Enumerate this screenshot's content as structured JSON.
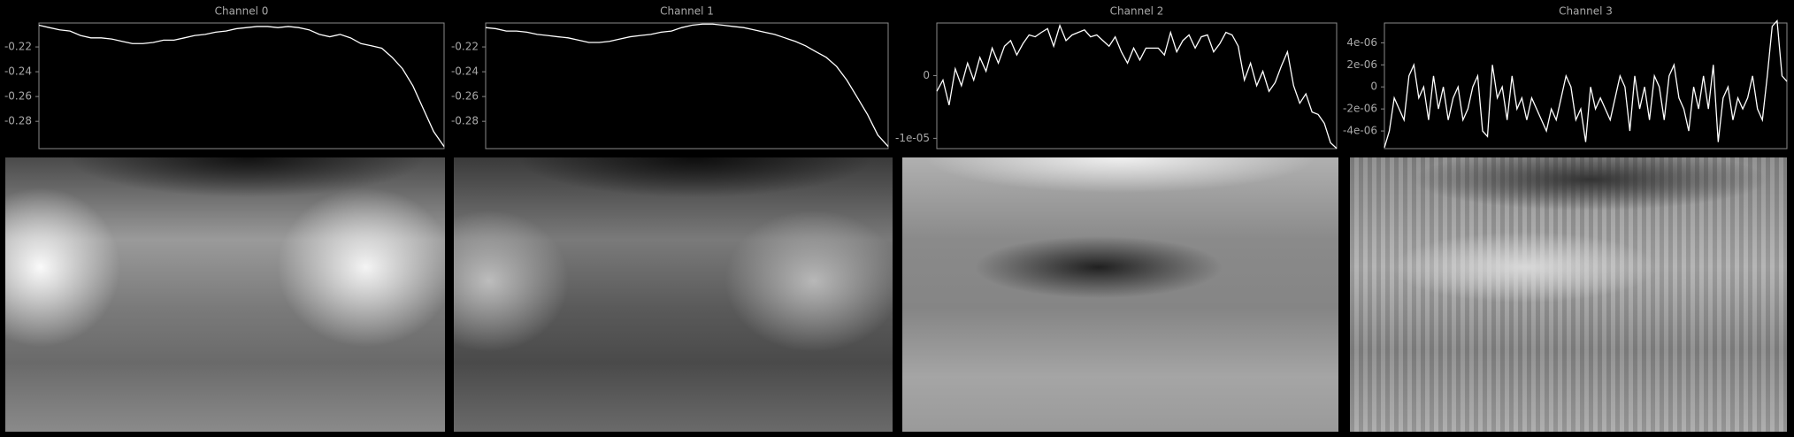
{
  "chart_data": [
    {
      "type": "line",
      "title": "Channel 0",
      "color": "#ffffff",
      "values": [
        -0.2025,
        -0.2044,
        -0.2062,
        -0.2072,
        -0.2108,
        -0.2127,
        -0.2127,
        -0.2136,
        -0.2155,
        -0.2173,
        -0.2173,
        -0.2164,
        -0.2145,
        -0.2145,
        -0.2127,
        -0.2108,
        -0.2099,
        -0.2081,
        -0.2072,
        -0.2053,
        -0.2044,
        -0.2035,
        -0.2035,
        -0.2044,
        -0.2035,
        -0.2044,
        -0.2062,
        -0.2099,
        -0.2118,
        -0.2099,
        -0.2127,
        -0.2173,
        -0.2191,
        -0.221,
        -0.2284,
        -0.2376,
        -0.2514,
        -0.2699,
        -0.2883,
        -0.3003
      ],
      "ylim": [
        -0.302,
        -0.2007
      ],
      "yticks": [
        -0.22,
        -0.24,
        -0.26,
        -0.28
      ]
    },
    {
      "type": "line",
      "title": "Channel 1",
      "color": "#ffffff",
      "values": [
        -0.2044,
        -0.2053,
        -0.2072,
        -0.2072,
        -0.2081,
        -0.2099,
        -0.2108,
        -0.2118,
        -0.2127,
        -0.2145,
        -0.2164,
        -0.2164,
        -0.2155,
        -0.2136,
        -0.2118,
        -0.2108,
        -0.2099,
        -0.2081,
        -0.2072,
        -0.2044,
        -0.2025,
        -0.2016,
        -0.2016,
        -0.2025,
        -0.2035,
        -0.2044,
        -0.2062,
        -0.2081,
        -0.2099,
        -0.2127,
        -0.2155,
        -0.2191,
        -0.2238,
        -0.2284,
        -0.2357,
        -0.2468,
        -0.2606,
        -0.2745,
        -0.2911,
        -0.3003
      ],
      "ylim": [
        -0.302,
        -0.2007
      ],
      "yticks": [
        -0.22,
        -0.24,
        -0.26,
        -0.28
      ]
    },
    {
      "type": "line",
      "title": "Channel 2",
      "color": "#ffffff",
      "values": [
        -2.5e-06,
        -7e-07,
        -4.7e-06,
        1.1e-06,
        -1.6e-06,
        2e-06,
        -7e-07,
        2.9e-06,
        7e-07,
        4.4e-06,
        2e-06,
        4.7e-06,
        5.6e-06,
        3.3e-06,
        5.1e-06,
        6.5e-06,
        6.2e-06,
        6.9e-06,
        7.5e-06,
        4.7e-06,
        8e-06,
        5.6e-06,
        6.5e-06,
        6.9e-06,
        7.3e-06,
        6.2e-06,
        6.5e-06,
        5.6e-06,
        4.7e-06,
        6.2e-06,
        3.8e-06,
        2e-06,
        4.4e-06,
        2.5e-06,
        4.4e-06,
        4.4e-06,
        4.4e-06,
        3.3e-06,
        6.9e-06,
        3.8e-06,
        5.6e-06,
        6.5e-06,
        4.4e-06,
        6.2e-06,
        6.5e-06,
        3.8e-06,
        5.1e-06,
        6.9e-06,
        6.5e-06,
        4.7e-06,
        -7e-07,
        2e-06,
        -1.6e-06,
        7e-07,
        -2.5e-06,
        -1.1e-06,
        1.5e-06,
        3.8e-06,
        -1.6e-06,
        -4.4e-06,
        -2.9e-06,
        -5.8e-06,
        -6.2e-06,
        -7.6e-06,
        -1.07e-05,
        -1.16e-05
      ],
      "ylim": [
        -1.164e-05,
        8.4e-06
      ],
      "yticks": [
        0,
        {
          "value": -1e-05,
          "label": "-1e-05"
        }
      ]
    },
    {
      "type": "line",
      "title": "Channel 3",
      "color": "#ffffff",
      "values": [
        -5.5e-06,
        -4e-06,
        -1e-06,
        -2e-06,
        -3e-06,
        1e-06,
        2e-06,
        -1e-06,
        0,
        -3e-06,
        1e-06,
        -2e-06,
        0,
        -3e-06,
        -1e-06,
        0,
        -3e-06,
        -2e-06,
        0,
        1e-06,
        -4e-06,
        -4.5e-06,
        2e-06,
        -1e-06,
        0,
        -3e-06,
        1e-06,
        -2e-06,
        -1e-06,
        -3e-06,
        -1e-06,
        -2e-06,
        -3e-06,
        -4e-06,
        -2e-06,
        -3e-06,
        -1e-06,
        1e-06,
        0,
        -3e-06,
        -2e-06,
        -5e-06,
        0,
        -2e-06,
        -1e-06,
        -2e-06,
        -3e-06,
        -1e-06,
        1e-06,
        0,
        -4e-06,
        1e-06,
        -2e-06,
        0,
        -3e-06,
        1e-06,
        0,
        -3e-06,
        1e-06,
        2e-06,
        -1e-06,
        -2e-06,
        -4e-06,
        0,
        -2e-06,
        1e-06,
        -2e-06,
        2e-06,
        -5e-06,
        -1e-06,
        0,
        -3e-06,
        -1e-06,
        -2e-06,
        -1e-06,
        1e-06,
        -2e-06,
        -3e-06,
        1e-06,
        5.5e-06,
        6e-06,
        1e-06,
        5e-07
      ],
      "ylim": [
        -5.6e-06,
        5.8e-06
      ],
      "yticks": [
        {
          "value": 4e-06,
          "label": "4e-06"
        },
        {
          "value": 2e-06,
          "label": "2e-06"
        },
        0,
        {
          "value": -2e-06,
          "label": "-2e-06"
        },
        {
          "value": -4e-06,
          "label": "-4e-06"
        }
      ]
    }
  ]
}
